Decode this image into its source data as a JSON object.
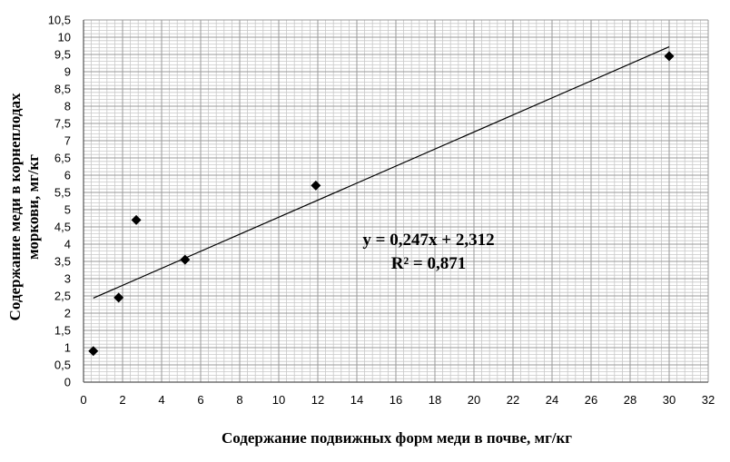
{
  "chart_data": {
    "type": "scatter",
    "xlabel": "Содержание подвижных форм меди в почве, мг/кг",
    "ylabel_lines": [
      "Содержание меди в корнеплодах",
      "моркови, мг/кг"
    ],
    "xlim": [
      0,
      32
    ],
    "ylim": [
      0,
      10.5
    ],
    "x_ticks": [
      "0",
      "2",
      "4",
      "6",
      "8",
      "10",
      "12",
      "14",
      "16",
      "18",
      "20",
      "22",
      "24",
      "26",
      "28",
      "30",
      "32"
    ],
    "y_ticks": [
      "0",
      "0,5",
      "1",
      "1,5",
      "2",
      "2,5",
      "3",
      "3,5",
      "4",
      "4,5",
      "5",
      "5,5",
      "6",
      "6,5",
      "7",
      "7,5",
      "8",
      "8,5",
      "9",
      "9,5",
      "10",
      "10,5"
    ],
    "grid": true,
    "points": [
      {
        "x": 0.5,
        "y": 0.9
      },
      {
        "x": 1.8,
        "y": 2.45
      },
      {
        "x": 2.7,
        "y": 4.7
      },
      {
        "x": 5.2,
        "y": 3.55
      },
      {
        "x": 11.9,
        "y": 5.7
      },
      {
        "x": 30.0,
        "y": 9.45
      }
    ],
    "trendline": {
      "slope": 0.247,
      "intercept": 2.312,
      "x_start": 0.5,
      "x_end": 30.0
    },
    "equation_text": "y = 0,247x + 2,312",
    "r2_text": "R² = 0,871",
    "marker_color": "#000000",
    "grid_color": "#c8c8c8"
  }
}
